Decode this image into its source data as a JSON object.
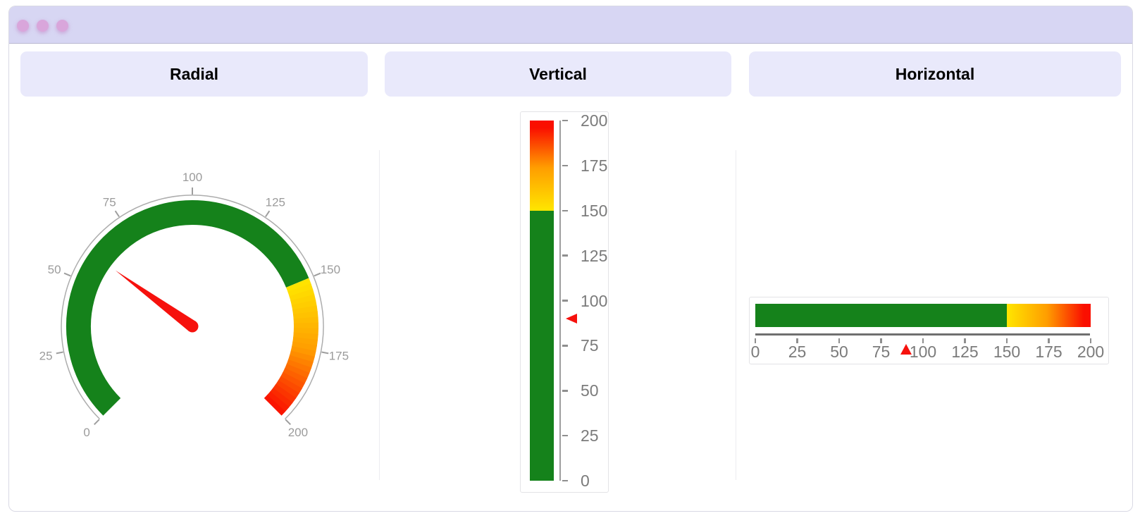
{
  "window": {
    "controls": [
      {
        "name": "window-dot-1"
      },
      {
        "name": "window-dot-2"
      },
      {
        "name": "window-dot-3"
      }
    ]
  },
  "panels": [
    {
      "title": "Radial"
    },
    {
      "title": "Vertical"
    },
    {
      "title": "Horizontal"
    }
  ],
  "theme": {
    "titlebar_bg": "#d7d6f3",
    "titlebar_border": "#b9b8d2",
    "dot_color": "#d9a6db",
    "header_bg": "#e9e9fb",
    "window_border": "#d9d9e4",
    "divider_color": "#ececf0",
    "green": "#15821b",
    "pointer_red": "#f6110d"
  },
  "chart_data": [
    {
      "type": "gauge-radial",
      "title": "Radial",
      "min": 0,
      "max": 200,
      "tick_interval": 25,
      "tick_labels": [
        "0",
        "25",
        "50",
        "75",
        "100",
        "125",
        "150",
        "175",
        "200"
      ],
      "start_angle_deg": 225,
      "sweep_deg": 270,
      "ranges": [
        {
          "from": 0,
          "to": 150,
          "color": "#15821b"
        },
        {
          "from": 150,
          "to": 200,
          "gradient": [
            "#ffe600",
            "#ff9d00",
            "#fa0f00"
          ]
        }
      ],
      "pointer": {
        "kind": "needle",
        "value": 60,
        "color": "#f6110d"
      },
      "axis": {
        "line_color": "#adadad",
        "tick_color": "#9e9e9e",
        "label_color": "#9b9b9b"
      }
    },
    {
      "type": "gauge-linear-vertical",
      "title": "Vertical",
      "min": 0,
      "max": 200,
      "tick_interval": 25,
      "tick_labels": [
        "0",
        "25",
        "50",
        "75",
        "100",
        "125",
        "150",
        "175",
        "200"
      ],
      "ranges": [
        {
          "from": 0,
          "to": 150,
          "color": "#15821b"
        },
        {
          "from": 150,
          "to": 200,
          "gradient": [
            "#ffe600",
            "#ff9d00",
            "#fa0f00"
          ]
        }
      ],
      "pointer": {
        "kind": "triangle-left",
        "value": 90,
        "color": "#f6110d"
      },
      "axis": {
        "line_color": "#9e9e9e",
        "tick_color": "#8f8f8f",
        "label_color": "#7b7b7b"
      }
    },
    {
      "type": "gauge-linear-horizontal",
      "title": "Horizontal",
      "min": 0,
      "max": 200,
      "tick_interval": 25,
      "tick_labels": [
        "0",
        "25",
        "50",
        "75",
        "100",
        "125",
        "150",
        "175",
        "200"
      ],
      "ranges": [
        {
          "from": 0,
          "to": 150,
          "color": "#15821b"
        },
        {
          "from": 150,
          "to": 200,
          "gradient": [
            "#ffe600",
            "#ff9d00",
            "#fa0f00"
          ]
        }
      ],
      "pointer": {
        "kind": "triangle-up",
        "value": 90,
        "color": "#f6110d"
      },
      "axis": {
        "line_color": "#6f6f6f",
        "tick_color": "#8f8f8f",
        "label_color": "#7b7b7b"
      }
    }
  ]
}
